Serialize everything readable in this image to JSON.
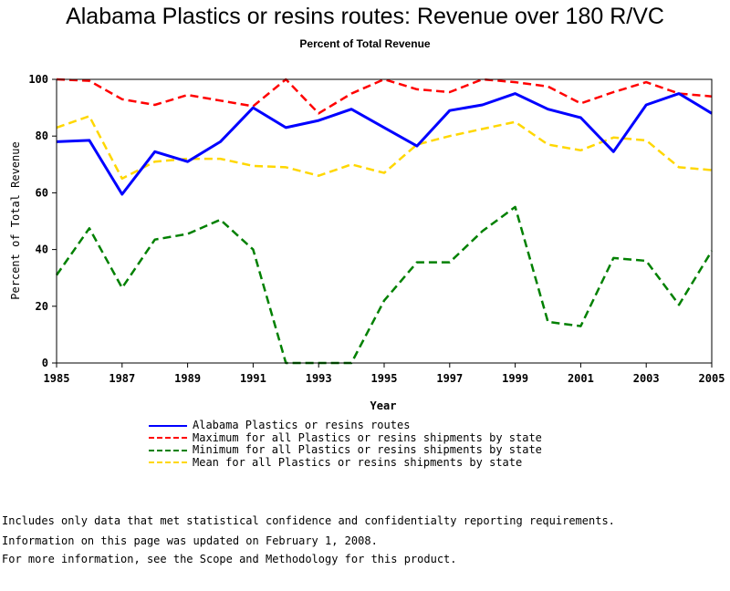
{
  "chart_data": {
    "type": "line",
    "title": "Alabama Plastics or resins routes: Revenue over 180 R/VC",
    "subtitle": "Percent of Total Revenue",
    "xlabel": "Year",
    "ylabel": "Percent of Total Revenue",
    "xlim": [
      1985,
      2005
    ],
    "ylim": [
      0,
      100
    ],
    "x_ticks": [
      "1985",
      "1987",
      "1989",
      "1991",
      "1993",
      "1995",
      "1997",
      "1999",
      "2001",
      "2003",
      "2005"
    ],
    "y_ticks": [
      "0",
      "20",
      "40",
      "60",
      "80",
      "100"
    ],
    "grid": false,
    "legend_position": "bottom",
    "x": [
      1985,
      1986,
      1987,
      1988,
      1989,
      1990,
      1991,
      1992,
      1993,
      1994,
      1995,
      1996,
      1997,
      1998,
      1999,
      2000,
      2001,
      2002,
      2003,
      2004,
      2005
    ],
    "series": [
      {
        "name": "Alabama Plastics or resins routes",
        "color": "#0000ff",
        "style": "solid",
        "values": [
          78,
          78.5,
          59.5,
          74.5,
          71,
          78,
          90,
          83,
          85.5,
          89.5,
          83,
          76.5,
          89,
          91,
          95,
          89.5,
          86.5,
          74.5,
          91,
          95,
          88
        ]
      },
      {
        "name": "Maximum for all Plastics or resins shipments by state",
        "color": "#ff0000",
        "style": "dashed",
        "values": [
          100,
          99.5,
          93,
          91,
          94.5,
          92.5,
          90.5,
          100,
          88,
          95,
          100,
          96.5,
          95.5,
          100,
          99,
          97.5,
          91.5,
          95.5,
          99,
          95,
          94
        ]
      },
      {
        "name": "Minimum for all Plastics or resins shipments by state",
        "color": "#008000",
        "style": "dashed",
        "values": [
          31,
          47.5,
          26.5,
          43.5,
          45.5,
          50.5,
          40,
          0,
          0,
          0,
          22,
          35.5,
          35.5,
          46.5,
          55,
          14.5,
          13,
          37,
          36,
          20.5,
          39.5
        ]
      },
      {
        "name": "Mean for all Plastics or resins shipments by state",
        "color": "#ffd700",
        "style": "dashed",
        "values": [
          83,
          87,
          65,
          71,
          72,
          72,
          69.5,
          69,
          66,
          70,
          67,
          77,
          80,
          82.5,
          85,
          77,
          75,
          79.5,
          78.5,
          69,
          68
        ]
      }
    ]
  },
  "notes": [
    "Includes only data that met statistical confidence and confidentialty reporting requirements.",
    "For more information, see the Scope and Methodology for this product."
  ],
  "updated_text": "Information on this page was updated on February 1, 2008."
}
